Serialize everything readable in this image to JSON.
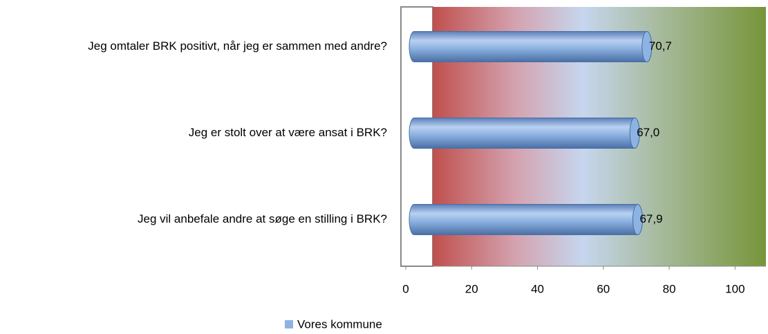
{
  "chart_data": {
    "type": "bar",
    "orientation": "horizontal",
    "categories": [
      "Jeg omtaler BRK positivt, når jeg er sammen med andre?",
      "Jeg er stolt over at være ansat i BRK?",
      "Jeg vil anbefale andre at søge en stilling i BRK?"
    ],
    "series": [
      {
        "name": "Vores kommune",
        "color": "#8db3e2",
        "values": [
          70.7,
          67.0,
          67.9
        ],
        "value_labels": [
          "70,7",
          "67,0",
          "67,9"
        ]
      }
    ],
    "xlim": [
      0,
      110
    ],
    "xticks": [
      0,
      20,
      40,
      60,
      80,
      100
    ],
    "legend": "bottom"
  }
}
